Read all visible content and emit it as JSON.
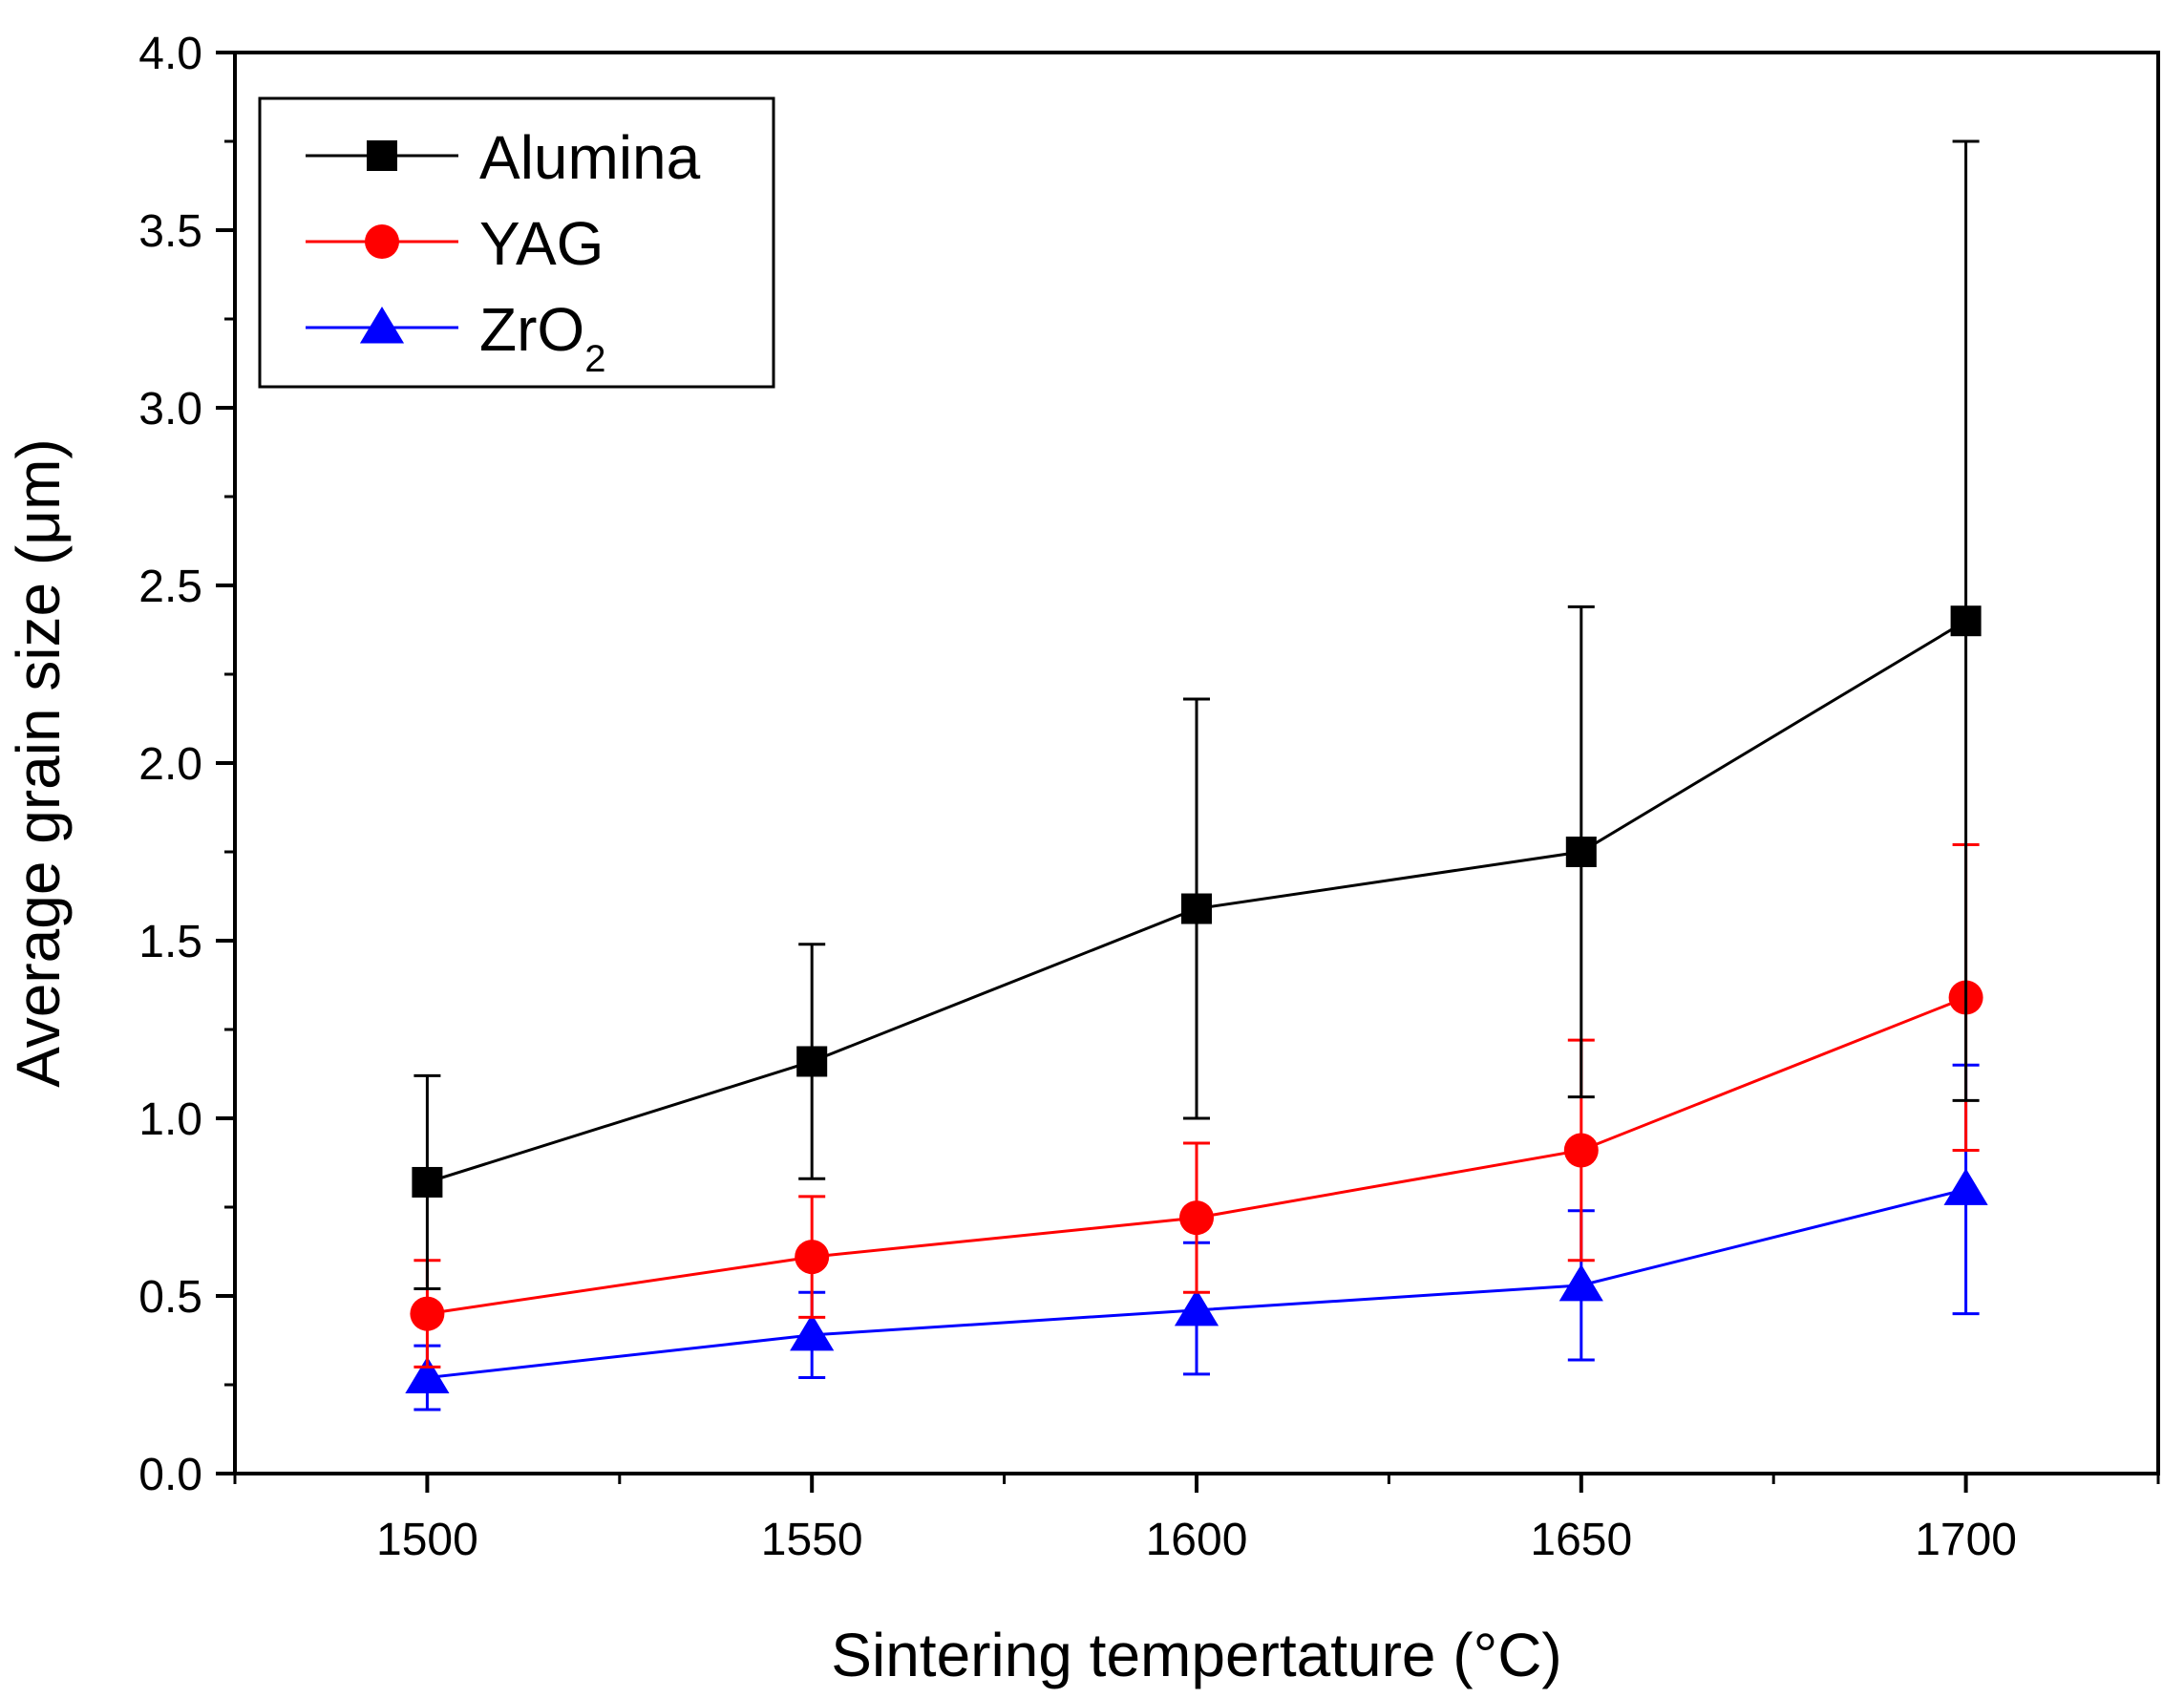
{
  "chart_data": {
    "type": "line",
    "xlabel": "Sintering tempertature (°C)",
    "ylabel": "Average grain size (μm)",
    "xlim": [
      1475,
      1725
    ],
    "ylim": [
      0.0,
      4.0
    ],
    "x": [
      1500,
      1550,
      1600,
      1650,
      1700
    ],
    "x_ticks": [
      1500,
      1550,
      1600,
      1650,
      1700
    ],
    "x_tick_labels": [
      "1500",
      "1550",
      "1600",
      "1650",
      "1700"
    ],
    "y_ticks": [
      0.0,
      0.5,
      1.0,
      1.5,
      2.0,
      2.5,
      3.0,
      3.5,
      4.0
    ],
    "y_tick_labels": [
      "0.0",
      "0.5",
      "1.0",
      "1.5",
      "2.0",
      "2.5",
      "3.0",
      "3.5",
      "4.0"
    ],
    "grid": false,
    "legend_position": "top-left",
    "series": [
      {
        "name": "Alumina",
        "legend_label": "Alumina",
        "color": "#000000",
        "marker": "square",
        "values": [
          0.82,
          1.16,
          1.59,
          1.75,
          2.4
        ],
        "err_low": [
          0.52,
          0.83,
          1.0,
          1.06,
          1.05
        ],
        "err_high": [
          1.12,
          1.49,
          2.18,
          2.44,
          3.75
        ]
      },
      {
        "name": "YAG",
        "legend_label": "YAG",
        "color": "#ff0000",
        "marker": "circle",
        "values": [
          0.45,
          0.61,
          0.72,
          0.91,
          1.34
        ],
        "err_low": [
          0.3,
          0.44,
          0.51,
          0.6,
          0.91
        ],
        "err_high": [
          0.6,
          0.78,
          0.93,
          1.22,
          1.77
        ]
      },
      {
        "name": "ZrO2",
        "legend_label": "ZrO",
        "legend_subscript": "2",
        "color": "#0000ff",
        "marker": "triangle",
        "values": [
          0.27,
          0.39,
          0.46,
          0.53,
          0.8
        ],
        "err_low": [
          0.18,
          0.27,
          0.28,
          0.32,
          0.45
        ],
        "err_high": [
          0.36,
          0.51,
          0.65,
          0.74,
          1.15
        ]
      }
    ]
  }
}
